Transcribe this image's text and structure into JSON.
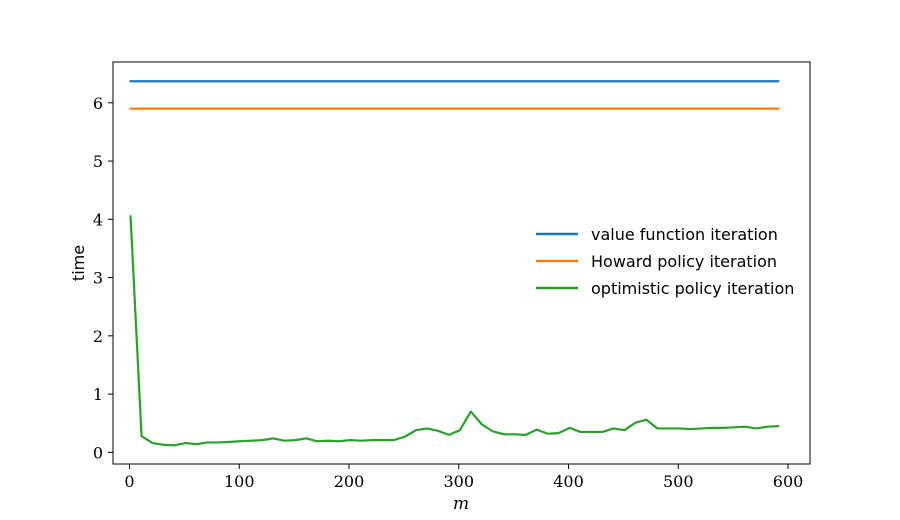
{
  "chart_data": {
    "type": "line",
    "title": "",
    "xlabel": "m",
    "ylabel": "time",
    "xlim": [
      -15,
      620
    ],
    "ylim": [
      -0.2,
      6.7
    ],
    "xticks": [
      0,
      100,
      200,
      300,
      400,
      500,
      600
    ],
    "yticks": [
      0,
      1,
      2,
      3,
      4,
      5,
      6
    ],
    "grid": false,
    "legend_position": "center-right",
    "x": [
      1,
      11,
      21,
      31,
      41,
      51,
      61,
      71,
      81,
      91,
      101,
      111,
      121,
      131,
      141,
      151,
      161,
      171,
      181,
      191,
      201,
      211,
      221,
      231,
      241,
      251,
      261,
      271,
      281,
      291,
      301,
      311,
      321,
      331,
      341,
      351,
      361,
      371,
      381,
      391,
      401,
      411,
      421,
      431,
      441,
      451,
      461,
      471,
      481,
      491,
      501,
      511,
      521,
      531,
      541,
      551,
      561,
      571,
      581,
      591
    ],
    "series": [
      {
        "name": "value function iteration",
        "color": "#1f77b4",
        "values": [
          6.37,
          6.37,
          6.37,
          6.37,
          6.37,
          6.37,
          6.37,
          6.37,
          6.37,
          6.37,
          6.37,
          6.37,
          6.37,
          6.37,
          6.37,
          6.37,
          6.37,
          6.37,
          6.37,
          6.37,
          6.37,
          6.37,
          6.37,
          6.37,
          6.37,
          6.37,
          6.37,
          6.37,
          6.37,
          6.37,
          6.37,
          6.37,
          6.37,
          6.37,
          6.37,
          6.37,
          6.37,
          6.37,
          6.37,
          6.37,
          6.37,
          6.37,
          6.37,
          6.37,
          6.37,
          6.37,
          6.37,
          6.37,
          6.37,
          6.37,
          6.37,
          6.37,
          6.37,
          6.37,
          6.37,
          6.37,
          6.37,
          6.37,
          6.37,
          6.37
        ]
      },
      {
        "name": "Howard policy iteration",
        "color": "#ff7f0e",
        "values": [
          5.9,
          5.9,
          5.9,
          5.9,
          5.9,
          5.9,
          5.9,
          5.9,
          5.9,
          5.9,
          5.9,
          5.9,
          5.9,
          5.9,
          5.9,
          5.9,
          5.9,
          5.9,
          5.9,
          5.9,
          5.9,
          5.9,
          5.9,
          5.9,
          5.9,
          5.9,
          5.9,
          5.9,
          5.9,
          5.9,
          5.9,
          5.9,
          5.9,
          5.9,
          5.9,
          5.9,
          5.9,
          5.9,
          5.9,
          5.9,
          5.9,
          5.9,
          5.9,
          5.9,
          5.9,
          5.9,
          5.9,
          5.9,
          5.9,
          5.9,
          5.9,
          5.9,
          5.9,
          5.9,
          5.9,
          5.9,
          5.9,
          5.9,
          5.9,
          5.9
        ]
      },
      {
        "name": "optimistic policy iteration",
        "color": "#2ca02c",
        "values": [
          4.05,
          0.28,
          0.16,
          0.13,
          0.12,
          0.16,
          0.14,
          0.17,
          0.17,
          0.18,
          0.19,
          0.2,
          0.21,
          0.24,
          0.2,
          0.21,
          0.24,
          0.19,
          0.2,
          0.19,
          0.21,
          0.2,
          0.21,
          0.21,
          0.21,
          0.27,
          0.38,
          0.41,
          0.37,
          0.3,
          0.38,
          0.7,
          0.48,
          0.36,
          0.31,
          0.31,
          0.3,
          0.39,
          0.32,
          0.33,
          0.42,
          0.35,
          0.35,
          0.35,
          0.41,
          0.38,
          0.51,
          0.56,
          0.41,
          0.41,
          0.41,
          0.4,
          0.41,
          0.42,
          0.42,
          0.43,
          0.44,
          0.41,
          0.44,
          0.45
        ]
      }
    ]
  }
}
